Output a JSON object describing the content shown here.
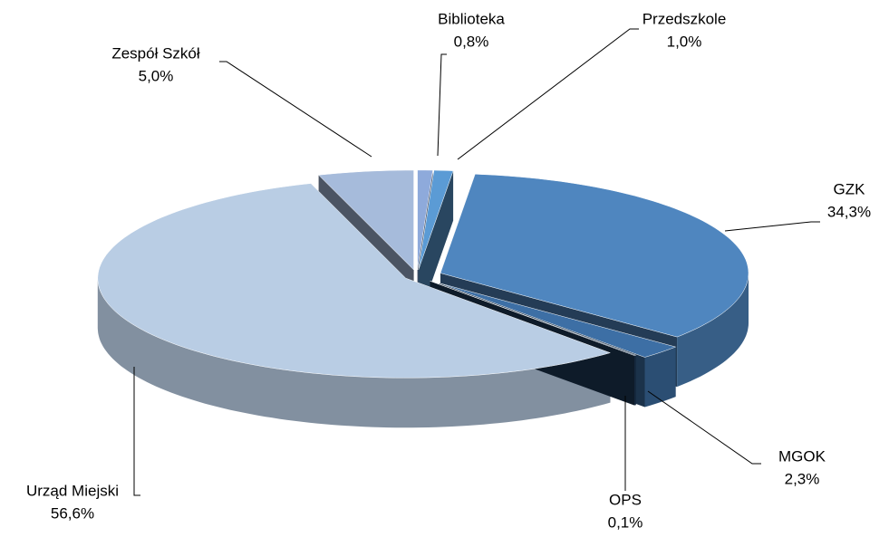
{
  "chart_data": {
    "type": "pie3d",
    "categories": [
      "Biblioteka",
      "Przedszkole",
      "GZK",
      "MGOK",
      "OPS",
      "Urząd Miejski",
      "Zespół Szkół"
    ],
    "values": [
      0.8,
      1.0,
      34.3,
      2.3,
      0.1,
      56.6,
      5.0
    ],
    "value_labels": [
      "0,8%",
      "1,0%",
      "34,3%",
      "2,3%",
      "0,1%",
      "56,6%",
      "5,0%"
    ],
    "colors": [
      "#8eaadb",
      "#5b9bd5",
      "#4f86bf",
      "#3d6fa5",
      "#1f3b5c",
      "#b9cde4",
      "#a6bbdb"
    ]
  }
}
